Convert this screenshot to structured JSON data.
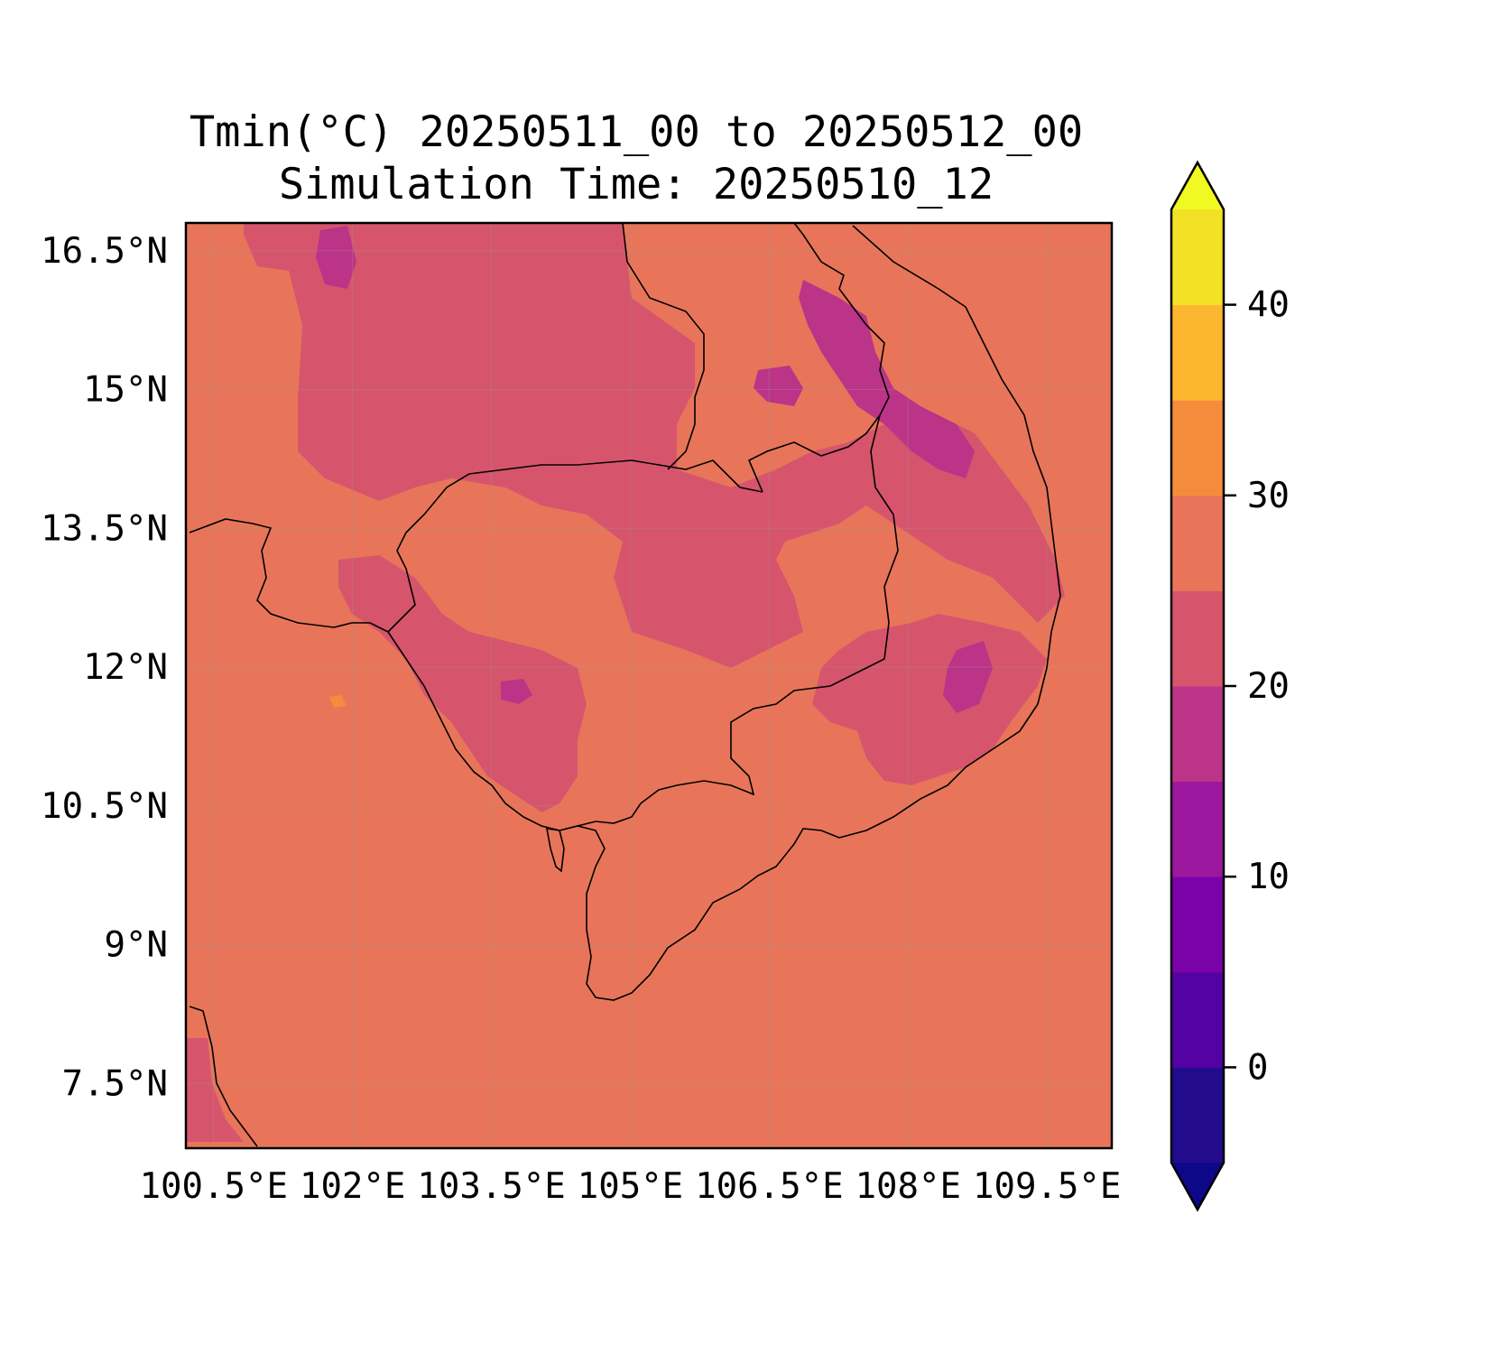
{
  "title": {
    "line1": "Tmin(°C) 20250511_00 to 20250512_00",
    "line2": "Simulation Time: 20250510_12"
  },
  "map": {
    "lon_range": [
      100.2,
      110.2
    ],
    "lat_range": [
      6.8,
      16.8
    ],
    "lon_ticks": [
      {
        "value": 100.5,
        "label": "100.5°E"
      },
      {
        "value": 102,
        "label": "102°E"
      },
      {
        "value": 103.5,
        "label": "103.5°E"
      },
      {
        "value": 105,
        "label": "105°E"
      },
      {
        "value": 106.5,
        "label": "106.5°E"
      },
      {
        "value": 108,
        "label": "108°E"
      },
      {
        "value": 109.5,
        "label": "109.5°E"
      }
    ],
    "lat_ticks": [
      {
        "value": 16.5,
        "label": "16.5°N"
      },
      {
        "value": 15,
        "label": "15°N"
      },
      {
        "value": 13.5,
        "label": "13.5°N"
      },
      {
        "value": 12,
        "label": "12°N"
      },
      {
        "value": 10.5,
        "label": "10.5°N"
      },
      {
        "value": 9,
        "label": "9°N"
      },
      {
        "value": 7.5,
        "label": "7.5°N"
      }
    ],
    "gridlines": true,
    "background_band": "25-30",
    "colors": {
      "band_20_25": "#d6556d",
      "band_25_30": "#e8755a",
      "band_15_20": "#bb3488",
      "band_30_35": "#f58c3c"
    }
  },
  "colorbar": {
    "min": -5,
    "max": 45,
    "extend": "both",
    "ticks": [
      {
        "value": 0,
        "label": "0"
      },
      {
        "value": 10,
        "label": "10"
      },
      {
        "value": 20,
        "label": "20"
      },
      {
        "value": 30,
        "label": "30"
      },
      {
        "value": 40,
        "label": "40"
      }
    ],
    "colors": [
      "#230c8c",
      "#5402a3",
      "#7b02a8",
      "#9c179e",
      "#bb3488",
      "#d6556d",
      "#e8755a",
      "#f58c3c",
      "#fdb62f",
      "#f3e125"
    ],
    "under_color": "#0d0887",
    "over_color": "#f0f921"
  }
}
